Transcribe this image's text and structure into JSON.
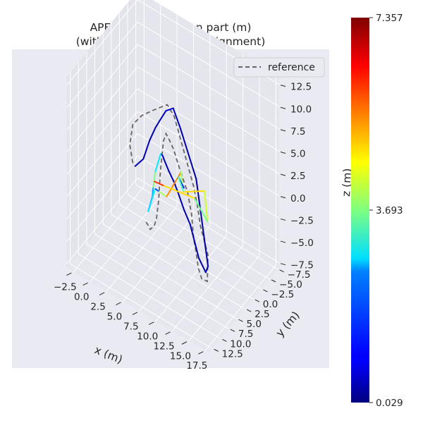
{
  "chart_data": {
    "type": "line3d",
    "title": "APE w.r.t. translation part (m)",
    "subtitle": "(with Sim(3) Umeyama alignment)",
    "xlabel": "x (m)",
    "ylabel": "y (m)",
    "zlabel": "z (m)",
    "x_ticks": [
      "−2.5",
      "0.0",
      "2.5",
      "5.0",
      "7.5",
      "10.0",
      "12.5",
      "15.0",
      "17.5"
    ],
    "y_ticks": [
      "−7.5",
      "−5.0",
      "−2.5",
      "0.0",
      "2.5",
      "5.0",
      "7.5",
      "10.0",
      "12.5"
    ],
    "z_ticks": [
      "12.5",
      "10.0",
      "7.5",
      "5.0",
      "2.5",
      "0.0",
      "−2.5",
      "−5.0",
      "−7.5"
    ],
    "xlim": [
      -3.5,
      18
    ],
    "ylim": [
      -8,
      13.5
    ],
    "zlim": [
      -8,
      13.5
    ],
    "legend": {
      "placement": "top-right",
      "entries": [
        {
          "label": "reference",
          "style": "dashed",
          "color": "#666666"
        }
      ]
    },
    "colorbar": {
      "colormap": "jet",
      "min": 0.029,
      "mid": 3.693,
      "max": 7.357,
      "min_label": "0.029",
      "mid_label": "3.693",
      "max_label": "7.357"
    },
    "background": "#eaeaf2",
    "grid": true,
    "reference": {
      "x": [
        4.5,
        3.8,
        3.5,
        3.9,
        4.6,
        5.2,
        5.5,
        5.9,
        6.3,
        6.7,
        7.0,
        7.2,
        7.3,
        7.5,
        7.4,
        7.0,
        6.8,
        6.9,
        7.2,
        7.3,
        7.3,
        7.2,
        7.2,
        7.1,
        7.0,
        6.9,
        6.9,
        6.8,
        6.8,
        6.7,
        6.7,
        6.6,
        6.6,
        6.5
      ],
      "y": [
        9.5,
        9.0,
        7.5,
        5.5,
        3.5,
        2.0,
        1.0,
        -0.3,
        -1.5,
        -2.7,
        -4.0,
        -4.8,
        -5.5,
        -7.4,
        -7.4,
        -6.5,
        -5.8,
        -5.2,
        -3.6,
        -2.8,
        -1.6,
        -0.4,
        1.2,
        2.3,
        3.4,
        4.2,
        5.0,
        5.7,
        6.2,
        6.7,
        7.4,
        8.4,
        9.0,
        9.5
      ],
      "z": [
        5.5,
        7.0,
        8.5,
        8.8,
        8.8,
        8.8,
        8.7,
        7.0,
        4.0,
        1.0,
        -2.0,
        -4.5,
        -7.0,
        -11.0,
        -14.0,
        -13.5,
        -12.0,
        -10.5,
        -7.5,
        -4.5,
        -1.5,
        0.5,
        3.0,
        5.0,
        6.5,
        7.5,
        7.0,
        4.0,
        1.0,
        -1.0,
        -1.5,
        -1.5,
        -0.8,
        -0.2
      ]
    },
    "estimate": {
      "x": [
        5.0,
        5.6,
        5.8,
        5.7,
        5.7,
        5.8,
        6.4,
        6.8,
        7.1,
        7.4,
        7.7,
        7.6,
        7.2,
        7.0,
        6.9,
        6.9,
        6.7,
        6.8,
        7.0,
        7.0,
        7.0,
        7.0,
        6.5,
        6.5,
        6.6,
        6.3,
        6.6,
        6.5,
        5.3,
        5.8,
        7.0,
        7.6,
        8.0,
        6.5,
        7.0,
        9.1,
        10.0,
        9.8,
        6.0,
        5.4
      ],
      "y": [
        9.8,
        8.5,
        7.0,
        5.0,
        3.8,
        2.0,
        1.0,
        -0.4,
        -2.2,
        -4.0,
        -7.0,
        -6.5,
        -5.2,
        -4.4,
        -3.2,
        -1.3,
        -0.2,
        1.5,
        3.5,
        5.0,
        5.4,
        6.0,
        6.7,
        7.3,
        7.8,
        8.4,
        7.2,
        6.6,
        3.1,
        1.8,
        -0.2,
        0.7,
        1.0,
        -0.4,
        -1.0,
        -3.1,
        -2.2,
        1.4,
        3.3,
        4.7
      ],
      "z": [
        5.5,
        6.0,
        7.5,
        8.0,
        8.2,
        8.6,
        8.7,
        6.0,
        2.5,
        -1.0,
        -12.0,
        -12.5,
        -10.5,
        -8.5,
        -6.0,
        -3.5,
        -1.5,
        0.8,
        3.0,
        5.0,
        5.6,
        6.1,
        4.1,
        2.6,
        1.8,
        0.4,
        2.2,
        2.2,
        -0.2,
        -1.1,
        1.3,
        0.2,
        0.5,
        0.4,
        -1.3,
        -1.2,
        -3.8,
        0.3,
        0.9,
        1.7
      ],
      "ape": [
        0.4,
        0.45,
        0.4,
        0.35,
        0.4,
        0.5,
        0.6,
        0.4,
        0.3,
        0.3,
        0.3,
        0.35,
        0.35,
        0.35,
        0.35,
        0.4,
        0.4,
        0.4,
        0.4,
        0.4,
        0.5,
        0.9,
        4.4,
        3.0,
        1.3,
        0.7,
        4.6,
        1.0,
        2.0,
        5.9,
        5.0,
        3.0,
        1.0,
        1.2,
        5.2,
        4.5,
        4.0,
        3.2,
        6.5,
        5.7
      ]
    }
  }
}
